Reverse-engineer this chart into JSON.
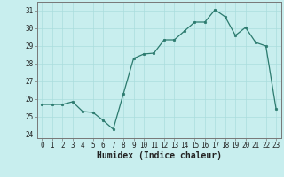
{
  "x": [
    0,
    1,
    2,
    3,
    4,
    5,
    6,
    7,
    8,
    9,
    10,
    11,
    12,
    13,
    14,
    15,
    16,
    17,
    18,
    19,
    20,
    21,
    22,
    23
  ],
  "y": [
    25.7,
    25.7,
    25.7,
    25.85,
    25.3,
    25.25,
    24.8,
    24.3,
    26.3,
    28.3,
    28.55,
    28.6,
    29.35,
    29.35,
    29.85,
    30.35,
    30.35,
    31.05,
    30.65,
    29.6,
    30.05,
    29.2,
    29.0,
    25.45
  ],
  "line_color": "#2b7a6e",
  "marker_color": "#2b7a6e",
  "bg_color": "#c8eeee",
  "grid_color": "#aadddd",
  "xlabel": "Humidex (Indice chaleur)",
  "ylabel_ticks": [
    24,
    25,
    26,
    27,
    28,
    29,
    30,
    31
  ],
  "xlim": [
    -0.5,
    23.5
  ],
  "ylim": [
    23.8,
    31.5
  ],
  "tick_fontsize": 5.5,
  "xlabel_fontsize": 7
}
